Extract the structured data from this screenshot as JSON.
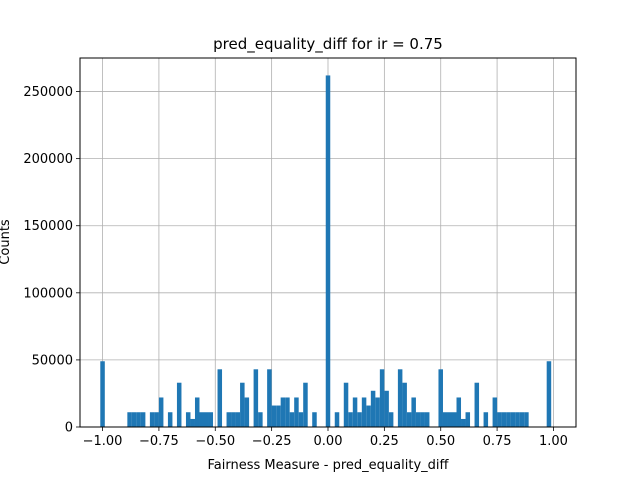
{
  "chart_data": {
    "type": "bar",
    "title": "pred_equality_diff for ir = 0.75",
    "xlabel": "Fairness Measure - pred_equality_diff",
    "ylabel": "Counts",
    "xlim": [
      -1.1,
      1.1
    ],
    "ylim": [
      0,
      275000
    ],
    "grid": true,
    "bar_color": "#1f77b4",
    "x_ticks": [
      -1.0,
      -0.75,
      -0.5,
      -0.25,
      0.0,
      0.25,
      0.5,
      0.75,
      1.0
    ],
    "x_tick_labels": [
      "−1.00",
      "−0.75",
      "−0.50",
      "−0.25",
      "0.00",
      "0.25",
      "0.50",
      "0.75",
      "1.00"
    ],
    "y_ticks": [
      0,
      50000,
      100000,
      150000,
      200000,
      250000
    ],
    "y_tick_labels": [
      "0",
      "50000",
      "100000",
      "150000",
      "200000",
      "250000"
    ],
    "bin_width": 0.02,
    "bins": [
      {
        "x": -1.0,
        "count": 49000
      },
      {
        "x": -0.88,
        "count": 11000
      },
      {
        "x": -0.86,
        "count": 11000
      },
      {
        "x": -0.84,
        "count": 11000
      },
      {
        "x": -0.82,
        "count": 11000
      },
      {
        "x": -0.78,
        "count": 11000
      },
      {
        "x": -0.76,
        "count": 11000
      },
      {
        "x": -0.74,
        "count": 22000
      },
      {
        "x": -0.7,
        "count": 11000
      },
      {
        "x": -0.66,
        "count": 33000
      },
      {
        "x": -0.62,
        "count": 11000
      },
      {
        "x": -0.6,
        "count": 6000
      },
      {
        "x": -0.58,
        "count": 22000
      },
      {
        "x": -0.56,
        "count": 11000
      },
      {
        "x": -0.54,
        "count": 11000
      },
      {
        "x": -0.52,
        "count": 11000
      },
      {
        "x": -0.48,
        "count": 43000
      },
      {
        "x": -0.44,
        "count": 11000
      },
      {
        "x": -0.42,
        "count": 11000
      },
      {
        "x": -0.4,
        "count": 11000
      },
      {
        "x": -0.38,
        "count": 33000
      },
      {
        "x": -0.36,
        "count": 22000
      },
      {
        "x": -0.32,
        "count": 43000
      },
      {
        "x": -0.3,
        "count": 11000
      },
      {
        "x": -0.26,
        "count": 43000
      },
      {
        "x": -0.24,
        "count": 16000
      },
      {
        "x": -0.22,
        "count": 16000
      },
      {
        "x": -0.2,
        "count": 22000
      },
      {
        "x": -0.18,
        "count": 22000
      },
      {
        "x": -0.16,
        "count": 11000
      },
      {
        "x": -0.14,
        "count": 22000
      },
      {
        "x": -0.12,
        "count": 11000
      },
      {
        "x": -0.1,
        "count": 33000
      },
      {
        "x": -0.06,
        "count": 11000
      },
      {
        "x": 0.0,
        "count": 262000
      },
      {
        "x": 0.04,
        "count": 11000
      },
      {
        "x": 0.08,
        "count": 33000
      },
      {
        "x": 0.1,
        "count": 11000
      },
      {
        "x": 0.12,
        "count": 22000
      },
      {
        "x": 0.14,
        "count": 11000
      },
      {
        "x": 0.16,
        "count": 22000
      },
      {
        "x": 0.18,
        "count": 16000
      },
      {
        "x": 0.2,
        "count": 27000
      },
      {
        "x": 0.22,
        "count": 22000
      },
      {
        "x": 0.24,
        "count": 43000
      },
      {
        "x": 0.26,
        "count": 27000
      },
      {
        "x": 0.28,
        "count": 11000
      },
      {
        "x": 0.32,
        "count": 43000
      },
      {
        "x": 0.34,
        "count": 33000
      },
      {
        "x": 0.36,
        "count": 11000
      },
      {
        "x": 0.38,
        "count": 22000
      },
      {
        "x": 0.4,
        "count": 11000
      },
      {
        "x": 0.42,
        "count": 11000
      },
      {
        "x": 0.44,
        "count": 11000
      },
      {
        "x": 0.5,
        "count": 43000
      },
      {
        "x": 0.52,
        "count": 11000
      },
      {
        "x": 0.54,
        "count": 11000
      },
      {
        "x": 0.56,
        "count": 11000
      },
      {
        "x": 0.58,
        "count": 22000
      },
      {
        "x": 0.6,
        "count": 6000
      },
      {
        "x": 0.62,
        "count": 11000
      },
      {
        "x": 0.66,
        "count": 33000
      },
      {
        "x": 0.7,
        "count": 11000
      },
      {
        "x": 0.74,
        "count": 22000
      },
      {
        "x": 0.76,
        "count": 11000
      },
      {
        "x": 0.78,
        "count": 11000
      },
      {
        "x": 0.8,
        "count": 11000
      },
      {
        "x": 0.82,
        "count": 11000
      },
      {
        "x": 0.84,
        "count": 11000
      },
      {
        "x": 0.86,
        "count": 11000
      },
      {
        "x": 0.88,
        "count": 11000
      },
      {
        "x": 0.98,
        "count": 49000
      }
    ]
  }
}
